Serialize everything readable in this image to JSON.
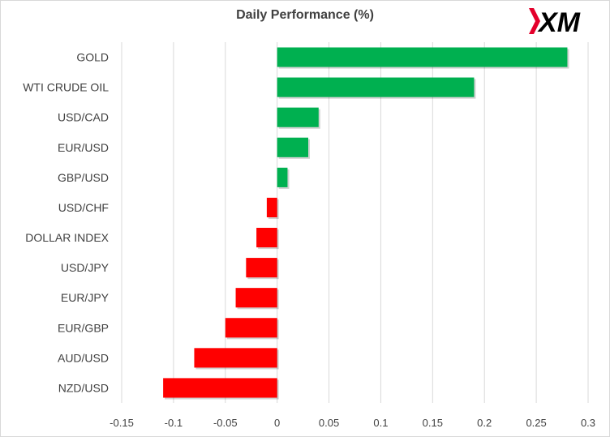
{
  "chart_data": {
    "type": "bar",
    "orientation": "horizontal",
    "title": "Daily Performance (%)",
    "categories": [
      "GOLD",
      "WTI CRUDE OIL",
      "USD/CAD",
      "EUR/USD",
      "GBP/USD",
      "USD/CHF",
      "DOLLAR INDEX",
      "USD/JPY",
      "EUR/JPY",
      "EUR/GBP",
      "AUD/USD",
      "NZD/USD"
    ],
    "values": [
      0.28,
      0.19,
      0.04,
      0.03,
      0.01,
      -0.01,
      -0.02,
      -0.03,
      -0.04,
      -0.05,
      -0.08,
      -0.11
    ],
    "xlim": [
      -0.15,
      0.3
    ],
    "xticks": [
      -0.15,
      -0.1,
      -0.05,
      0,
      0.05,
      0.1,
      0.15,
      0.2,
      0.25,
      0.3
    ],
    "xtick_labels": [
      "-0.15",
      "-0.1",
      "-0.05",
      "0",
      "0.05",
      "0.1",
      "0.15",
      "0.2",
      "0.25",
      "0.3"
    ],
    "grid": true,
    "legend": "none",
    "colors": {
      "positive": "#00b050",
      "negative": "#ff0000",
      "grid": "#d9d9d9",
      "text": "#404040"
    }
  },
  "logo": {
    "text": "XM",
    "colors": {
      "mark": "#e4002b",
      "text": "#000000"
    }
  }
}
